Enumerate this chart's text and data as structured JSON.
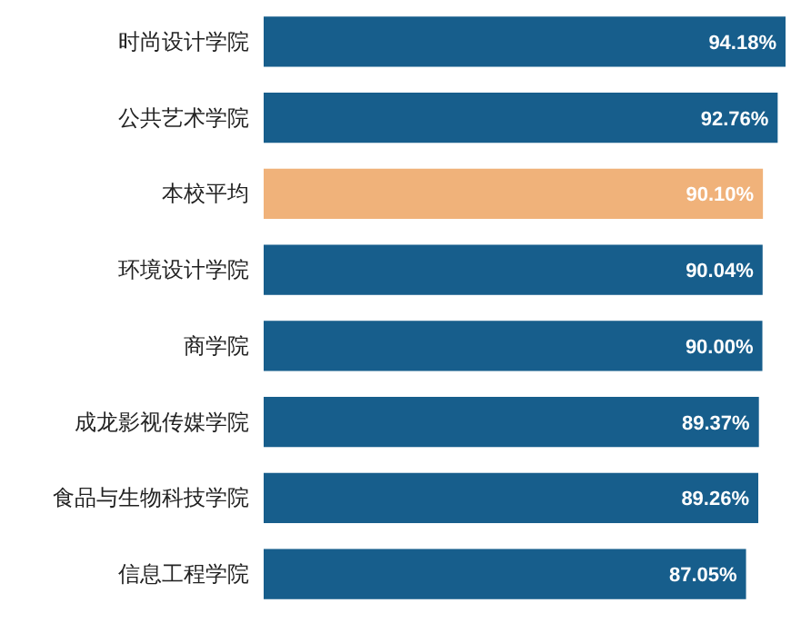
{
  "chart_data": {
    "type": "bar",
    "orientation": "horizontal",
    "categories": [
      "时尚设计学院",
      "公共艺术学院",
      "本校平均",
      "环境设计学院",
      "商学院",
      "成龙影视传媒学院",
      "食品与生物科技学院",
      "信息工程学院"
    ],
    "values": [
      94.18,
      92.76,
      90.1,
      90.04,
      90.0,
      89.37,
      89.26,
      87.05
    ],
    "colors": [
      "#175e8c",
      "#175e8c",
      "#f0b27a",
      "#175e8c",
      "#175e8c",
      "#175e8c",
      "#175e8c",
      "#175e8c"
    ],
    "value_labels": [
      "94.18%",
      "92.76%",
      "90.10%",
      "90.04%",
      "90.00%",
      "89.37%",
      "89.26%",
      "87.05%"
    ],
    "tick_labels": "y"
  }
}
